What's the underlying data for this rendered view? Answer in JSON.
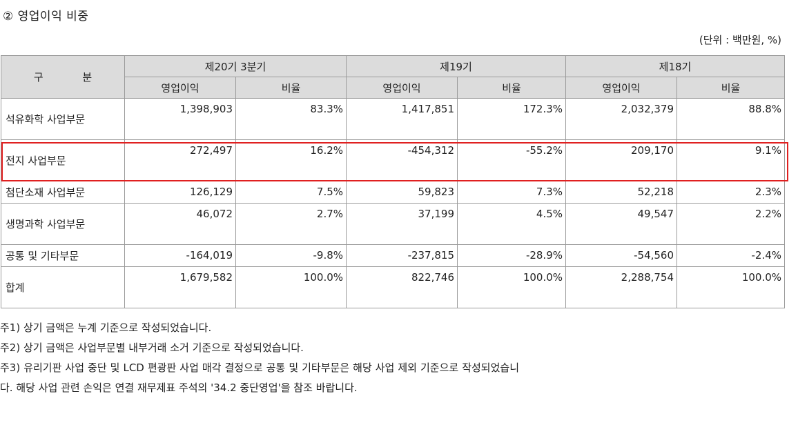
{
  "title": "② 영업이익 비중",
  "unit": "(단위 : 백만원, %)",
  "table": {
    "header": {
      "gubun": "구 분",
      "periods": [
        "제20기 3분기",
        "제19기",
        "제18기"
      ],
      "sub": [
        "영업이익",
        "비율",
        "영업이익",
        "비율",
        "영업이익",
        "비율"
      ]
    },
    "rows": [
      {
        "label": "석유화학 사업부문",
        "values": [
          "1,398,903",
          "83.3%",
          "1,417,851",
          "172.3%",
          "2,032,379",
          "88.8%"
        ]
      },
      {
        "label": "전지 사업부문",
        "values": [
          "272,497",
          "16.2%",
          "-454,312",
          "-55.2%",
          "209,170",
          "9.1%"
        ]
      },
      {
        "label": "첨단소재 사업부문",
        "values": [
          "126,129",
          "7.5%",
          "59,823",
          "7.3%",
          "52,218",
          "2.3%"
        ]
      },
      {
        "label": "생명과학 사업부문",
        "values": [
          "46,072",
          "2.7%",
          "37,199",
          "4.5%",
          "49,547",
          "2.2%"
        ]
      },
      {
        "label": "공통 및 기타부문",
        "values": [
          "-164,019",
          "-9.8%",
          "-237,815",
          "-28.9%",
          "-54,560",
          "-2.4%"
        ]
      },
      {
        "label": "합계",
        "values": [
          "1,679,582",
          "100.0%",
          "822,746",
          "100.0%",
          "2,288,754",
          "100.0%"
        ]
      }
    ]
  },
  "notes": [
    "주1) 상기 금액은 누계 기준으로 작성되었습니다.",
    "주2) 상기 금액은 사업부문별 내부거래 소거 기준으로 작성되었습니다.",
    "주3) 유리기판 사업 중단 및 LCD 편광판 사업 매각 결정으로 공통 및 기타부문은 해당 사업 제외 기준으로 작성되었습니다. 해당 사업 관련 손익은 연결 재무제표 주석의 '34.2 중단영업'을 참조 바랍니다."
  ],
  "highlight_color": "#e02020"
}
